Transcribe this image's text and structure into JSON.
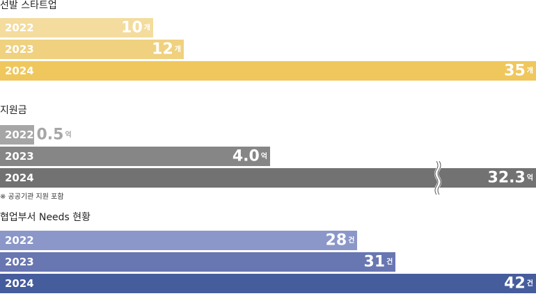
{
  "chart_data": [
    {
      "type": "bar",
      "orientation": "horizontal",
      "title": "선발 스타트업",
      "categories": [
        "2022",
        "2023",
        "2024"
      ],
      "values": [
        10,
        12,
        35
      ],
      "value_labels": [
        "10",
        "12",
        "35"
      ],
      "unit": "개",
      "colors": [
        "#f3dc9e",
        "#efd17f",
        "#efc75d"
      ],
      "note": ""
    },
    {
      "type": "bar",
      "orientation": "horizontal",
      "title": "지원금",
      "categories": [
        "2022",
        "2023",
        "2024"
      ],
      "values": [
        0.5,
        4.0,
        32.3
      ],
      "value_labels": [
        "0.5",
        "4.0",
        "32.3"
      ],
      "unit": "억",
      "colors": [
        "#a6a6a6",
        "#868686",
        "#727272"
      ],
      "axis_break": true,
      "note": "※ 공공기관 지원 포함"
    },
    {
      "type": "bar",
      "orientation": "horizontal",
      "title": "협업부서 Needs 현황",
      "categories": [
        "2022",
        "2023",
        "2024"
      ],
      "values": [
        28,
        31,
        42
      ],
      "value_labels": [
        "28",
        "31",
        "42"
      ],
      "unit": "건",
      "colors": [
        "#8b97c8",
        "#6876b2",
        "#465d9d"
      ],
      "note": ""
    }
  ]
}
